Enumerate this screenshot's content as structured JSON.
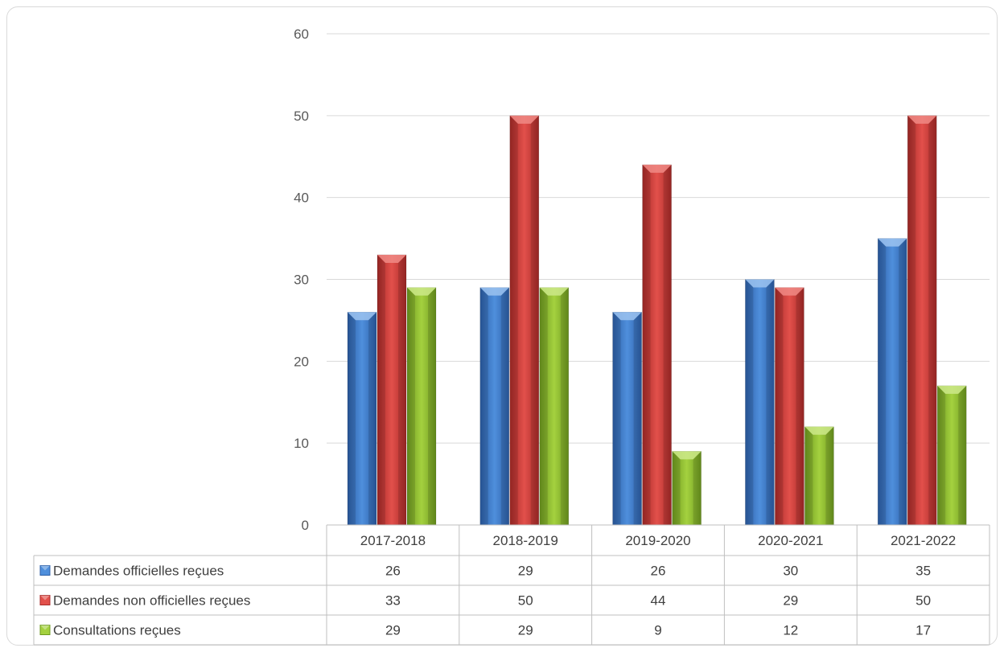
{
  "chart_data": {
    "type": "bar",
    "categories": [
      "2017-2018",
      "2018-2019",
      "2019-2020",
      "2020-2021",
      "2021-2022"
    ],
    "series": [
      {
        "name": "Demandes officielles reçues",
        "values": [
          26,
          29,
          26,
          30,
          35
        ],
        "color": "#3a78c9"
      },
      {
        "name": "Demandes non officielles reçues",
        "values": [
          33,
          50,
          44,
          29,
          50
        ],
        "color": "#d13a36"
      },
      {
        "name": "Consultations reçues",
        "values": [
          29,
          29,
          9,
          12,
          17
        ],
        "color": "#8fbf2e"
      }
    ],
    "y_ticks": [
      "0",
      "10",
      "20",
      "30",
      "40",
      "50",
      "60"
    ],
    "ylim": [
      0,
      60
    ],
    "grid": true,
    "data_table": true,
    "legend": "data-table-rows"
  }
}
